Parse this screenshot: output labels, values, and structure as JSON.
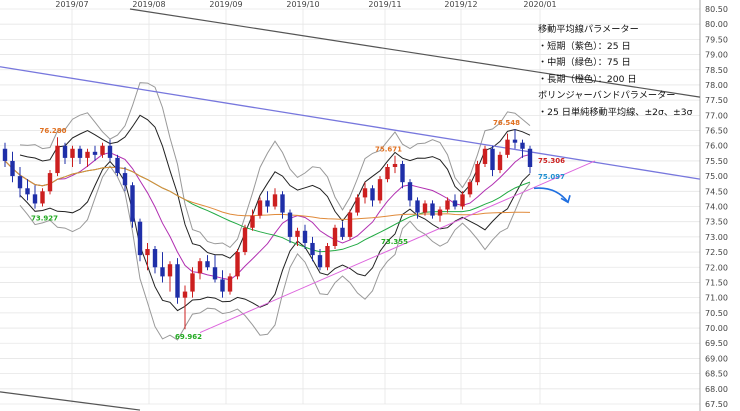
{
  "chart_data": {
    "type": "candlestick",
    "title": "",
    "xlabel": "",
    "ylabel": "",
    "ylim": [
      67.5,
      80.5
    ],
    "grid": true,
    "y_ticks": [
      "67.50",
      "68.00",
      "68.50",
      "69.00",
      "69.50",
      "70.00",
      "70.50",
      "71.00",
      "71.50",
      "72.00",
      "72.50",
      "73.00",
      "73.50",
      "74.00",
      "74.50",
      "75.00",
      "75.50",
      "76.00",
      "76.50",
      "77.00",
      "77.50",
      "78.00",
      "78.50",
      "79.00",
      "79.50",
      "80.00",
      "80.50"
    ],
    "x_ticks": [
      "2019/07",
      "2019/08",
      "2019/09",
      "2019/10",
      "2019/11",
      "2019/12",
      "2020/01"
    ],
    "legend": {
      "heading": "移動平均線パラメーター",
      "items": [
        "・短期（紫色）：25 日",
        "・中期（緑色）：75 日",
        "・長期（橙色）：200 日"
      ],
      "heading2": "ボリンジャーバンドパラメーター",
      "items2": [
        "・25 日単純移動平均線、±2σ、±3σ"
      ]
    },
    "series_colors": {
      "up": "#cc1f1f",
      "down": "#1f2fa8",
      "ma_short": "#b12fb1",
      "ma_mid": "#22aa44",
      "ma_long": "#e08a3a",
      "trend_upper": "#7777dd",
      "trend_lower": "#dd66dd",
      "trend_top": "#555555",
      "sigma2": "#222222",
      "sigma3": "#999999",
      "forecast": "#1f6fe0"
    },
    "annotations": [
      {
        "text": "76.280",
        "value": 76.28,
        "color": "#e07020"
      },
      {
        "text": "73.927",
        "value": 73.927,
        "color": "#22aa22"
      },
      {
        "text": "69.962",
        "value": 69.962,
        "color": "#22aa22"
      },
      {
        "text": "75.671",
        "value": 75.671,
        "color": "#e07020"
      },
      {
        "text": "73.355",
        "value": 73.355,
        "color": "#22aa22"
      },
      {
        "text": "76.548",
        "value": 76.548,
        "color": "#e07020"
      },
      {
        "text": "75.306",
        "value": 75.306,
        "color": "#cc1f1f"
      },
      {
        "text": "75.097",
        "value": 75.097,
        "color": "#1f8fd0"
      }
    ],
    "candles": [
      {
        "o": 75.9,
        "h": 76.1,
        "l": 75.3,
        "c": 75.5
      },
      {
        "o": 75.5,
        "h": 75.8,
        "l": 74.8,
        "c": 75.0
      },
      {
        "o": 75.0,
        "h": 75.3,
        "l": 74.3,
        "c": 74.6
      },
      {
        "o": 74.6,
        "h": 74.9,
        "l": 74.2,
        "c": 74.4
      },
      {
        "o": 74.4,
        "h": 74.7,
        "l": 73.93,
        "c": 74.1
      },
      {
        "o": 74.1,
        "h": 74.6,
        "l": 74.0,
        "c": 74.5
      },
      {
        "o": 74.5,
        "h": 75.2,
        "l": 74.4,
        "c": 75.1
      },
      {
        "o": 75.1,
        "h": 76.28,
        "l": 75.0,
        "c": 76.0
      },
      {
        "o": 76.0,
        "h": 76.1,
        "l": 75.4,
        "c": 75.6
      },
      {
        "o": 75.6,
        "h": 76.0,
        "l": 75.3,
        "c": 75.9
      },
      {
        "o": 75.9,
        "h": 76.0,
        "l": 75.4,
        "c": 75.6
      },
      {
        "o": 75.6,
        "h": 75.9,
        "l": 75.3,
        "c": 75.8
      },
      {
        "o": 75.8,
        "h": 76.0,
        "l": 75.5,
        "c": 75.7
      },
      {
        "o": 75.7,
        "h": 76.1,
        "l": 75.6,
        "c": 76.0
      },
      {
        "o": 76.0,
        "h": 76.2,
        "l": 75.5,
        "c": 75.6
      },
      {
        "o": 75.6,
        "h": 75.7,
        "l": 75.0,
        "c": 75.1
      },
      {
        "o": 75.1,
        "h": 75.3,
        "l": 74.5,
        "c": 74.7
      },
      {
        "o": 74.7,
        "h": 74.8,
        "l": 73.3,
        "c": 73.5
      },
      {
        "o": 73.5,
        "h": 73.6,
        "l": 72.2,
        "c": 72.4
      },
      {
        "o": 72.4,
        "h": 72.8,
        "l": 71.9,
        "c": 72.6
      },
      {
        "o": 72.6,
        "h": 72.7,
        "l": 71.8,
        "c": 72.0
      },
      {
        "o": 72.0,
        "h": 72.5,
        "l": 71.5,
        "c": 71.7
      },
      {
        "o": 71.7,
        "h": 72.2,
        "l": 71.2,
        "c": 72.1
      },
      {
        "o": 72.1,
        "h": 72.3,
        "l": 70.8,
        "c": 71.0
      },
      {
        "o": 71.0,
        "h": 71.4,
        "l": 69.96,
        "c": 71.2
      },
      {
        "o": 71.2,
        "h": 72.0,
        "l": 71.0,
        "c": 71.8
      },
      {
        "o": 71.8,
        "h": 72.3,
        "l": 71.6,
        "c": 72.2
      },
      {
        "o": 72.2,
        "h": 72.4,
        "l": 71.9,
        "c": 72.0
      },
      {
        "o": 72.0,
        "h": 72.4,
        "l": 71.5,
        "c": 71.6
      },
      {
        "o": 71.6,
        "h": 71.9,
        "l": 71.0,
        "c": 71.2
      },
      {
        "o": 71.2,
        "h": 71.8,
        "l": 71.1,
        "c": 71.7
      },
      {
        "o": 71.7,
        "h": 72.6,
        "l": 71.6,
        "c": 72.5
      },
      {
        "o": 72.5,
        "h": 73.4,
        "l": 72.4,
        "c": 73.3
      },
      {
        "o": 73.3,
        "h": 73.9,
        "l": 73.2,
        "c": 73.7
      },
      {
        "o": 73.7,
        "h": 74.3,
        "l": 73.6,
        "c": 74.2
      },
      {
        "o": 74.2,
        "h": 74.5,
        "l": 73.8,
        "c": 74.0
      },
      {
        "o": 74.0,
        "h": 74.6,
        "l": 73.9,
        "c": 74.4
      },
      {
        "o": 74.4,
        "h": 74.5,
        "l": 73.6,
        "c": 73.8
      },
      {
        "o": 73.8,
        "h": 73.9,
        "l": 72.8,
        "c": 73.0
      },
      {
        "o": 73.0,
        "h": 73.3,
        "l": 72.7,
        "c": 73.2
      },
      {
        "o": 73.2,
        "h": 73.4,
        "l": 72.6,
        "c": 72.8
      },
      {
        "o": 72.8,
        "h": 73.0,
        "l": 72.2,
        "c": 72.4
      },
      {
        "o": 72.4,
        "h": 72.6,
        "l": 71.9,
        "c": 72.0
      },
      {
        "o": 72.0,
        "h": 72.8,
        "l": 71.9,
        "c": 72.7
      },
      {
        "o": 72.7,
        "h": 73.4,
        "l": 72.6,
        "c": 73.3
      },
      {
        "o": 73.3,
        "h": 73.5,
        "l": 72.9,
        "c": 73.0
      },
      {
        "o": 73.0,
        "h": 73.9,
        "l": 72.9,
        "c": 73.8
      },
      {
        "o": 73.8,
        "h": 74.4,
        "l": 73.7,
        "c": 74.3
      },
      {
        "o": 74.3,
        "h": 74.8,
        "l": 74.1,
        "c": 74.6
      },
      {
        "o": 74.6,
        "h": 74.7,
        "l": 74.0,
        "c": 74.2
      },
      {
        "o": 74.2,
        "h": 75.0,
        "l": 74.1,
        "c": 74.9
      },
      {
        "o": 74.9,
        "h": 75.4,
        "l": 74.8,
        "c": 75.3
      },
      {
        "o": 75.3,
        "h": 75.67,
        "l": 75.1,
        "c": 75.4
      },
      {
        "o": 75.4,
        "h": 75.5,
        "l": 74.6,
        "c": 74.8
      },
      {
        "o": 74.8,
        "h": 74.9,
        "l": 74.0,
        "c": 74.2
      },
      {
        "o": 74.2,
        "h": 74.3,
        "l": 73.6,
        "c": 73.8
      },
      {
        "o": 73.8,
        "h": 74.2,
        "l": 73.7,
        "c": 74.1
      },
      {
        "o": 74.1,
        "h": 74.2,
        "l": 73.6,
        "c": 73.7
      },
      {
        "o": 73.7,
        "h": 74.0,
        "l": 73.5,
        "c": 73.9
      },
      {
        "o": 73.9,
        "h": 74.3,
        "l": 73.8,
        "c": 74.2
      },
      {
        "o": 74.2,
        "h": 74.4,
        "l": 73.9,
        "c": 74.0
      },
      {
        "o": 74.0,
        "h": 74.5,
        "l": 73.9,
        "c": 74.4
      },
      {
        "o": 74.4,
        "h": 74.9,
        "l": 74.3,
        "c": 74.8
      },
      {
        "o": 74.8,
        "h": 75.5,
        "l": 74.7,
        "c": 75.4
      },
      {
        "o": 75.4,
        "h": 76.0,
        "l": 75.3,
        "c": 75.9
      },
      {
        "o": 75.9,
        "h": 76.0,
        "l": 75.0,
        "c": 75.2
      },
      {
        "o": 75.2,
        "h": 75.8,
        "l": 75.1,
        "c": 75.7
      },
      {
        "o": 75.7,
        "h": 76.4,
        "l": 75.6,
        "c": 76.2
      },
      {
        "o": 76.2,
        "h": 76.548,
        "l": 75.9,
        "c": 76.1
      },
      {
        "o": 76.1,
        "h": 76.2,
        "l": 75.6,
        "c": 75.9
      },
      {
        "o": 75.9,
        "h": 76.0,
        "l": 75.1,
        "c": 75.3
      }
    ]
  }
}
